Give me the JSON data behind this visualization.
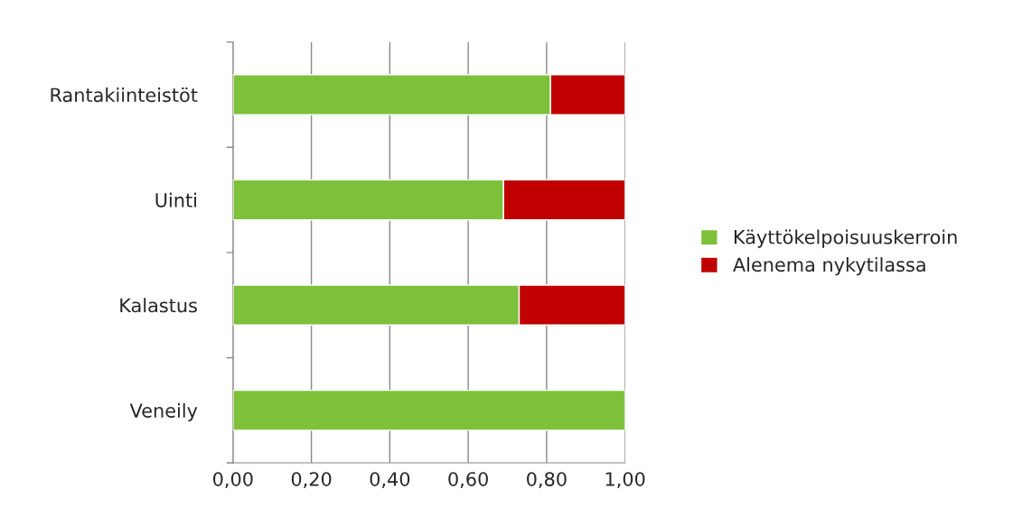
{
  "chart_data": {
    "type": "bar",
    "orientation": "horizontal",
    "stacked": true,
    "categories": [
      "Rantakiinteistöt",
      "Uinti",
      "Kalastus",
      "Veneily"
    ],
    "series": [
      {
        "name": "Käyttökelpoisuuskerroin",
        "color": "#7dc13a",
        "values": [
          0.81,
          0.69,
          0.73,
          1.0
        ]
      },
      {
        "name": "Alenema nykytilassa",
        "color": "#c00000",
        "values": [
          0.19,
          0.31,
          0.27,
          null
        ]
      }
    ],
    "xlim": [
      0,
      1
    ],
    "xticks": [
      {
        "value": 0,
        "label": "0,00"
      },
      {
        "value": 0.2,
        "label": "0,20"
      },
      {
        "value": 0.4,
        "label": "0,40"
      },
      {
        "value": 0.6,
        "label": "0,60"
      },
      {
        "value": 0.8,
        "label": "0,80"
      },
      {
        "value": 1.0,
        "label": "1,00"
      }
    ],
    "grid": "x",
    "legend": "right"
  }
}
